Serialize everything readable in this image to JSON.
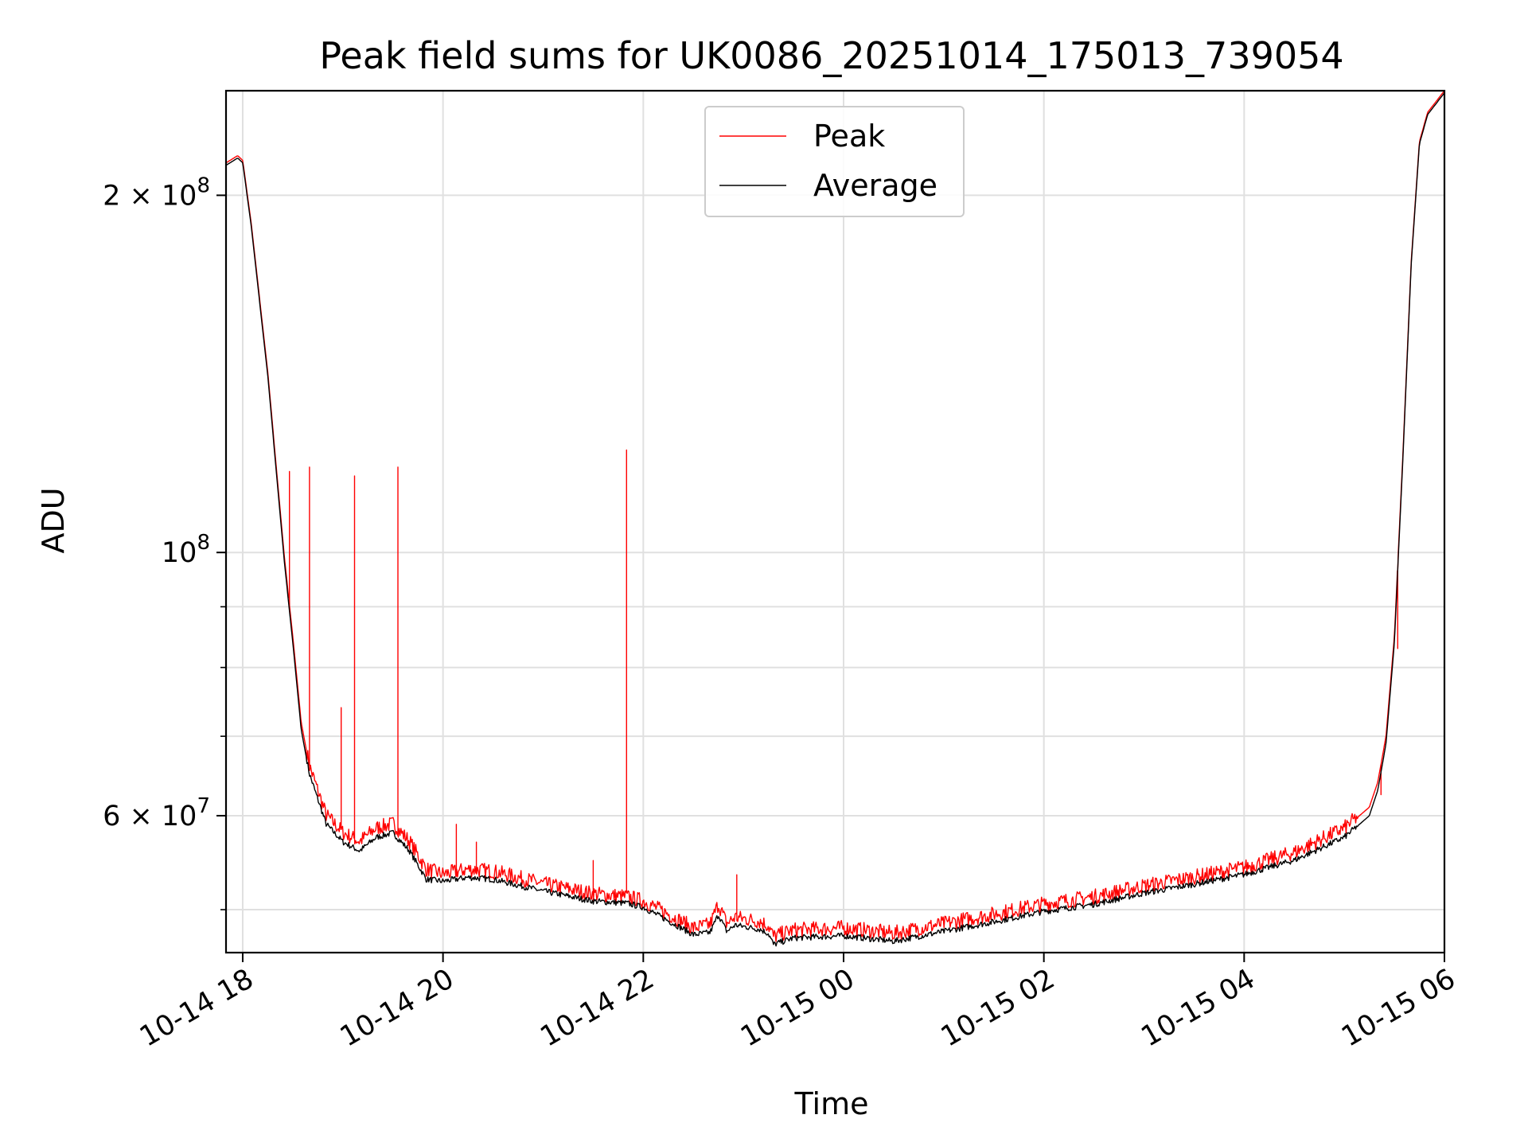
{
  "chart_data": {
    "type": "line",
    "title": "Peak field sums for UK0086_20251014_175013_739054",
    "xlabel": "Time",
    "ylabel": "ADU",
    "yscale": "log",
    "ylim": [
      46000000,
      245000000
    ],
    "xlim": [
      "2025-10-14 17:50",
      "2025-10-15 06:00"
    ],
    "x_ticks": [
      "10-14 18",
      "10-14 20",
      "10-14 22",
      "10-15 00",
      "10-15 02",
      "10-15 04",
      "10-15 06"
    ],
    "y_ticks": [
      {
        "value": 200000000,
        "label": "2 × 10^8"
      },
      {
        "value": 100000000,
        "label": "10^8"
      },
      {
        "value": 60000000,
        "label": "6 × 10^7"
      }
    ],
    "grid": true,
    "legend_position": "top-center",
    "colors": {
      "peak": "#ff0000",
      "average": "#000000",
      "grid": "#e0e0e0"
    },
    "x": [
      "2025-10-14 17:50",
      "2025-10-14 17:57",
      "2025-10-14 18:00",
      "2025-10-14 18:05",
      "2025-10-14 18:15",
      "2025-10-14 18:25",
      "2025-10-14 18:30",
      "2025-10-14 18:35",
      "2025-10-14 18:40",
      "2025-10-14 18:50",
      "2025-10-14 19:00",
      "2025-10-14 19:10",
      "2025-10-14 19:20",
      "2025-10-14 19:30",
      "2025-10-14 19:40",
      "2025-10-14 19:50",
      "2025-10-14 20:00",
      "2025-10-14 20:15",
      "2025-10-14 20:30",
      "2025-10-14 21:00",
      "2025-10-14 21:30",
      "2025-10-14 21:50",
      "2025-10-14 22:00",
      "2025-10-14 22:15",
      "2025-10-14 22:30",
      "2025-10-14 22:40",
      "2025-10-14 22:45",
      "2025-10-14 22:50",
      "2025-10-14 22:55",
      "2025-10-14 23:10",
      "2025-10-14 23:15",
      "2025-10-14 23:18",
      "2025-10-14 23:30",
      "2025-10-15 00:00",
      "2025-10-15 00:30",
      "2025-10-15 01:00",
      "2025-10-15 01:30",
      "2025-10-15 02:00",
      "2025-10-15 02:30",
      "2025-10-15 03:00",
      "2025-10-15 03:30",
      "2025-10-15 04:00",
      "2025-10-15 04:30",
      "2025-10-15 05:00",
      "2025-10-15 05:15",
      "2025-10-15 05:20",
      "2025-10-15 05:25",
      "2025-10-15 05:30",
      "2025-10-15 05:35",
      "2025-10-15 05:40",
      "2025-10-15 05:45",
      "2025-10-15 05:50",
      "2025-10-15 06:00"
    ],
    "series": [
      {
        "name": "Peak",
        "values": [
          213000000,
          216000000,
          214000000,
          190000000,
          142000000,
          99000000,
          85000000,
          72000000,
          66000000,
          60000000,
          58000000,
          57000000,
          58500000,
          59000000,
          57000000,
          54000000,
          53500000,
          54000000,
          53800000,
          52500000,
          51500000,
          51200000,
          50800000,
          49500000,
          48200000,
          48500000,
          50500000,
          48600000,
          49200000,
          48800000,
          48400000,
          47400000,
          48000000,
          48200000,
          47700000,
          48600000,
          49500000,
          50500000,
          51200000,
          52300000,
          53200000,
          54200000,
          55800000,
          58500000,
          61000000,
          64000000,
          70000000,
          85000000,
          120000000,
          175000000,
          222000000,
          235000000,
          245000000
        ]
      },
      {
        "name": "Average",
        "values": [
          212000000,
          215000000,
          213000000,
          189000000,
          141000000,
          98000000,
          84000000,
          71000000,
          65000000,
          59000000,
          57000000,
          56000000,
          57500000,
          58000000,
          56000000,
          53000000,
          52800000,
          53200000,
          53000000,
          51800000,
          50800000,
          50600000,
          50200000,
          48900000,
          47600000,
          47800000,
          49500000,
          47900000,
          48500000,
          48100000,
          47700000,
          46700000,
          47300000,
          47500000,
          47000000,
          47900000,
          48800000,
          49800000,
          50500000,
          51600000,
          52500000,
          53500000,
          55000000,
          57500000,
          60000000,
          63000000,
          69000000,
          84000000,
          119000000,
          174000000,
          221000000,
          234000000,
          244000000
        ]
      }
    ],
    "peak_spikes": [
      {
        "x": "2025-10-14 18:28",
        "y": 117000000
      },
      {
        "x": "2025-10-14 18:40",
        "y": 118000000
      },
      {
        "x": "2025-10-14 18:59",
        "y": 74000000
      },
      {
        "x": "2025-10-14 19:07",
        "y": 116000000
      },
      {
        "x": "2025-10-14 19:33",
        "y": 118000000
      },
      {
        "x": "2025-10-14 20:08",
        "y": 59000000
      },
      {
        "x": "2025-10-14 20:20",
        "y": 57000000
      },
      {
        "x": "2025-10-14 21:30",
        "y": 55000000
      },
      {
        "x": "2025-10-14 21:50",
        "y": 122000000
      },
      {
        "x": "2025-10-14 22:56",
        "y": 53500000
      },
      {
        "x": "2025-10-15 05:22",
        "y": 62500000
      },
      {
        "x": "2025-10-15 05:32",
        "y": 83000000
      }
    ]
  }
}
